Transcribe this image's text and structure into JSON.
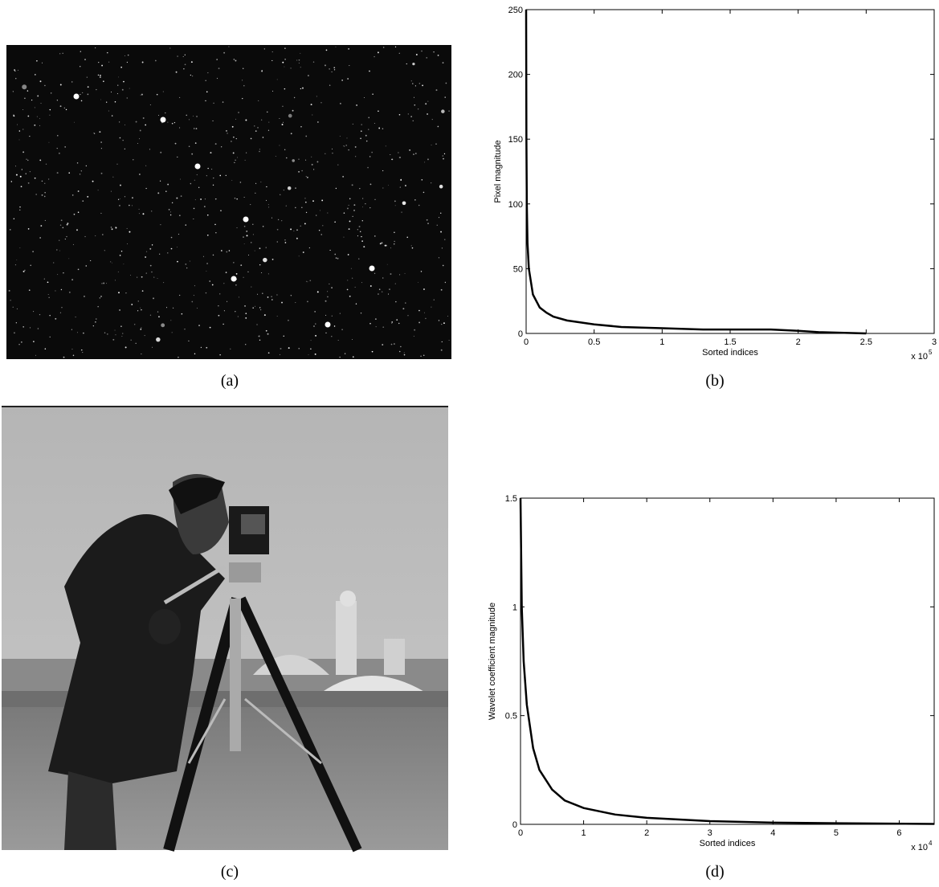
{
  "panels": [
    {
      "caption": "(a)"
    },
    {
      "caption": "(b)"
    },
    {
      "caption": "(c)"
    },
    {
      "caption": "(d)"
    }
  ],
  "chart_data": [
    {
      "type": "line",
      "x_label": "Sorted indices",
      "y_label": "Pixel magnitude",
      "x_scale_base": "x 10",
      "x_scale_exponent": "5",
      "xlim": [
        0,
        3
      ],
      "ylim": [
        0,
        250
      ],
      "xticks": [
        0,
        0.5,
        1,
        1.5,
        2,
        2.5,
        3
      ],
      "yticks": [
        0,
        50,
        100,
        150,
        200,
        250
      ],
      "x": [
        0,
        0.002,
        0.005,
        0.01,
        0.02,
        0.05,
        0.1,
        0.15,
        0.2,
        0.3,
        0.5,
        0.7,
        1.0,
        1.3,
        1.8,
        2.0,
        2.15,
        2.5
      ],
      "series": [
        {
          "color": "#000000",
          "values": [
            250,
            150,
            100,
            70,
            50,
            30,
            20,
            16,
            13,
            10,
            7,
            5,
            4,
            3,
            3,
            2,
            1,
            0
          ]
        }
      ]
    },
    {
      "type": "line",
      "x_label": "Sorted indices",
      "y_label": "Wavelet coefficient magnitude",
      "x_scale_base": "x 10",
      "x_scale_exponent": "4",
      "xlim": [
        0,
        6.5536
      ],
      "ylim": [
        0,
        1.5
      ],
      "xticks": [
        0,
        1,
        2,
        3,
        4,
        5,
        6
      ],
      "yticks": [
        0,
        0.5,
        1,
        1.5
      ],
      "x": [
        0,
        0.02,
        0.05,
        0.1,
        0.2,
        0.3,
        0.5,
        0.7,
        1,
        1.5,
        2,
        3,
        4,
        5,
        6.5536
      ],
      "series": [
        {
          "color": "#000000",
          "values": [
            1.5,
            1.0,
            0.75,
            0.55,
            0.35,
            0.25,
            0.16,
            0.11,
            0.075,
            0.045,
            0.03,
            0.015,
            0.008,
            0.005,
            0.002
          ]
        }
      ]
    }
  ]
}
